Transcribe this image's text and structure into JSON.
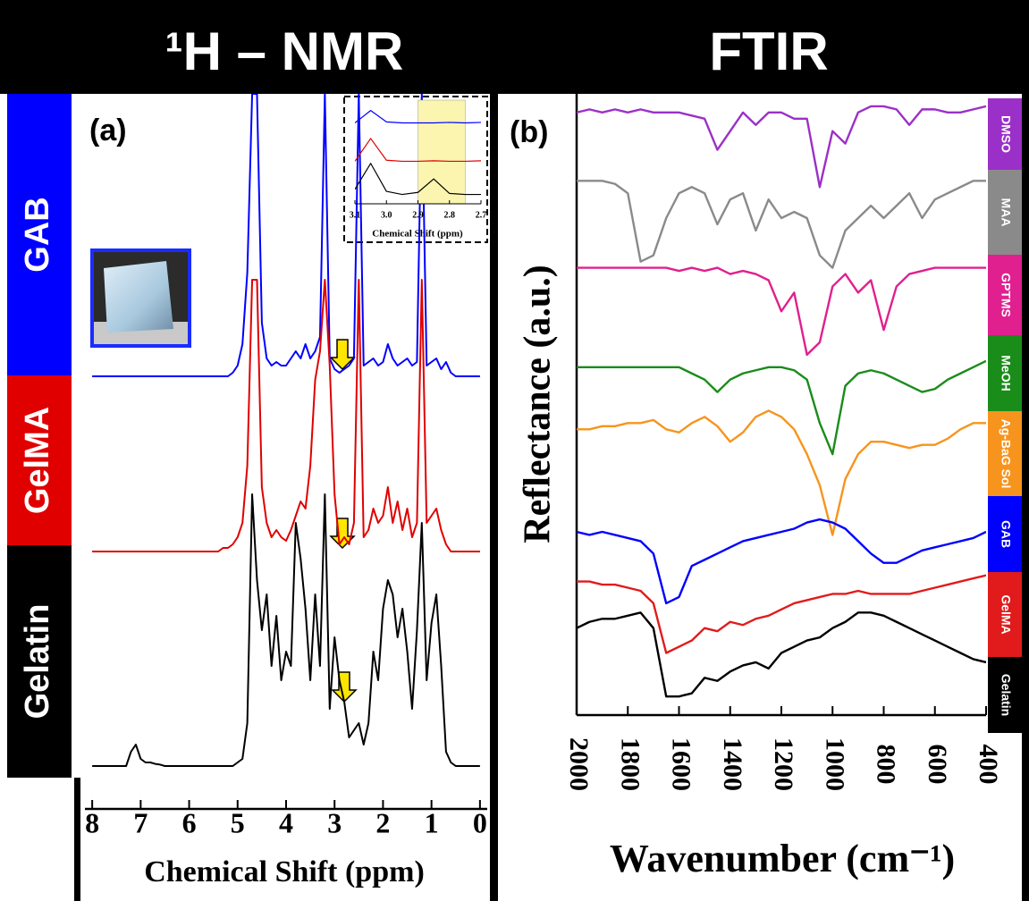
{
  "chart_data": [
    {
      "type": "line",
      "title": "¹H – NMR",
      "panel_label": "(a)",
      "x_label": "Chemical Shift (ppm)",
      "x": [
        8.0,
        7.9,
        7.8,
        7.7,
        7.6,
        7.5,
        7.4,
        7.3,
        7.2,
        7.1,
        7.0,
        6.9,
        6.8,
        6.7,
        6.6,
        6.5,
        6.4,
        6.3,
        6.2,
        6.1,
        6.0,
        5.9,
        5.8,
        5.7,
        5.6,
        5.5,
        5.4,
        5.3,
        5.2,
        5.1,
        5.0,
        4.9,
        4.8,
        4.7,
        4.6,
        4.5,
        4.4,
        4.3,
        4.2,
        4.1,
        4.0,
        3.9,
        3.8,
        3.7,
        3.6,
        3.5,
        3.4,
        3.3,
        3.2,
        3.1,
        3.0,
        2.9,
        2.8,
        2.7,
        2.6,
        2.5,
        2.4,
        2.3,
        2.2,
        2.1,
        2.0,
        1.9,
        1.8,
        1.7,
        1.6,
        1.5,
        1.4,
        1.3,
        1.2,
        1.1,
        1.0,
        0.9,
        0.8,
        0.7,
        0.6,
        0.5,
        0.4,
        0.3,
        0.2,
        0.1,
        0.0
      ],
      "xlim": [
        8.15,
        -0.15
      ],
      "xticks": [
        8,
        7,
        6,
        5,
        4,
        3,
        2,
        1,
        0
      ],
      "ylim": [
        0,
        100
      ],
      "series": [
        {
          "name": "GAB",
          "color": "#0000ff",
          "values": [
            60.5,
            60.5,
            60.5,
            60.5,
            60.5,
            60.5,
            60.5,
            60.5,
            60.5,
            60.5,
            60.5,
            60.5,
            60.5,
            60.5,
            60.5,
            60.5,
            60.5,
            60.5,
            60.5,
            60.5,
            60.5,
            60.5,
            60.5,
            60.5,
            60.5,
            60.5,
            60.5,
            60.5,
            60.5,
            61,
            62,
            65,
            75,
            100,
            100,
            68,
            63,
            62,
            62.5,
            62,
            62,
            63,
            64,
            63,
            65,
            63,
            64,
            66,
            100,
            63,
            61.5,
            61,
            61.5,
            62,
            63,
            100,
            62,
            62.5,
            63,
            62,
            62.5,
            65,
            63,
            62,
            62.5,
            63,
            62,
            62.5,
            100,
            62,
            62.5,
            63,
            61.5,
            62.5,
            61,
            60.5,
            60.5,
            60.5,
            60.5,
            60.5,
            60.5
          ]
        },
        {
          "name": "GelMA",
          "color": "#e00000",
          "values": [
            36,
            36,
            36,
            36,
            36,
            36,
            36,
            36,
            36,
            36,
            36,
            36,
            36,
            36,
            36,
            36,
            36,
            36,
            36,
            36,
            36,
            36,
            36,
            36,
            36,
            36,
            36,
            36.5,
            36.5,
            37,
            38,
            40,
            48,
            74,
            74,
            45,
            40,
            38,
            39,
            38,
            37.5,
            39,
            41,
            43,
            42,
            48,
            60,
            64,
            74,
            62,
            44,
            37,
            38,
            37,
            40,
            74,
            38,
            39,
            42,
            40,
            41,
            45,
            40,
            43,
            39,
            42,
            38,
            40,
            74,
            40,
            41,
            42,
            39,
            37,
            36,
            36,
            36,
            36,
            36,
            36,
            36
          ]
        },
        {
          "name": "Gelatin",
          "color": "#000000",
          "values": [
            6,
            6,
            6,
            6,
            6,
            6,
            6,
            6,
            8,
            9,
            7,
            6.5,
            6.5,
            6.3,
            6.2,
            6,
            6,
            6,
            6,
            6,
            6,
            6,
            6,
            6,
            6,
            6,
            6,
            6,
            6,
            6,
            6.5,
            7,
            12,
            44,
            32,
            25,
            30,
            20,
            27,
            18,
            22,
            20,
            40,
            35,
            28,
            18,
            30,
            20,
            44,
            14,
            24,
            18,
            15,
            10,
            11,
            12,
            9,
            12,
            22,
            18,
            28,
            32,
            30,
            24,
            28,
            22,
            14,
            25,
            40,
            18,
            26,
            30,
            20,
            8,
            6.5,
            6,
            6,
            6,
            6,
            6,
            6
          ]
        }
      ]
    },
    {
      "type": "line",
      "title": "FTIR",
      "panel_label": "(b)",
      "x_label": "Wavenumber (cm⁻¹)",
      "y_label": "Reflectance (a.u.)",
      "x": [
        2000,
        1950,
        1900,
        1850,
        1800,
        1750,
        1700,
        1650,
        1600,
        1550,
        1500,
        1450,
        1400,
        1350,
        1300,
        1250,
        1200,
        1150,
        1100,
        1050,
        1000,
        950,
        900,
        850,
        800,
        750,
        700,
        650,
        600,
        550,
        500,
        450,
        400
      ],
      "xlim": [
        2000,
        400
      ],
      "xticks": [
        2000,
        1800,
        1600,
        1400,
        1200,
        1000,
        800,
        600,
        400
      ],
      "ylim": [
        0,
        100
      ],
      "series": [
        {
          "name": "DMSO",
          "color": "#9b30c8",
          "values": [
            97,
            97.5,
            97,
            97.5,
            97,
            97.5,
            97,
            97,
            97,
            96.5,
            96,
            91,
            94,
            97,
            95,
            97,
            97,
            96,
            96,
            85,
            94,
            92,
            97,
            98,
            98,
            97.5,
            95,
            97.5,
            97.5,
            97,
            97,
            97.5,
            98
          ]
        },
        {
          "name": "MAA",
          "color": "#8a8a8a",
          "values": [
            86,
            86,
            86,
            85.5,
            84,
            73,
            74,
            80,
            84,
            85,
            84,
            79,
            83,
            84,
            78,
            83,
            80,
            81,
            80,
            74,
            72,
            78,
            80,
            82,
            80,
            82,
            84,
            80,
            83,
            84,
            85,
            86,
            86
          ]
        },
        {
          "name": "GPTMS",
          "color": "#e0208f",
          "values": [
            72,
            72,
            72,
            72,
            72,
            72,
            72,
            72,
            71.5,
            72,
            71.5,
            72,
            71,
            71.5,
            71,
            70,
            65,
            68,
            58,
            60,
            69,
            71,
            68,
            70,
            62,
            69,
            71,
            71.5,
            72,
            72,
            72,
            72,
            72
          ]
        },
        {
          "name": "MeOH",
          "color": "#1a8c1a",
          "values": [
            56,
            56,
            56,
            56,
            56,
            56,
            56,
            56,
            56,
            55,
            54,
            52,
            54,
            55,
            55.5,
            56,
            56,
            55.5,
            54,
            47,
            42,
            53,
            55,
            55.5,
            55,
            54,
            53,
            52,
            52.5,
            54,
            55,
            56,
            57
          ]
        },
        {
          "name": "Ag-BaG Sol",
          "color": "#f7941d",
          "values": [
            46,
            46,
            46.5,
            46.5,
            47,
            47,
            47.5,
            46,
            45.5,
            47,
            48,
            46.5,
            44,
            45.5,
            48,
            49,
            48,
            46,
            42,
            37,
            29,
            38,
            42,
            44,
            44,
            43.5,
            43,
            43.5,
            43.5,
            44.5,
            46,
            47,
            47
          ]
        },
        {
          "name": "GAB",
          "color": "#0000ff",
          "values": [
            29.5,
            29,
            29.5,
            29,
            28.5,
            28,
            26,
            18,
            19,
            24,
            25,
            26,
            27,
            28,
            28.5,
            29,
            29.5,
            30,
            31,
            31.5,
            31,
            30,
            28,
            26,
            24.5,
            24.5,
            25.5,
            26.5,
            27,
            27.5,
            28,
            28.5,
            29.5
          ]
        },
        {
          "name": "GelMA",
          "color": "#e11b1b",
          "values": [
            21.5,
            21.5,
            21,
            21,
            20.5,
            20,
            18,
            10,
            11,
            12,
            14,
            13.5,
            15,
            14.5,
            15.5,
            16,
            17,
            18,
            18.5,
            19,
            19.5,
            19.5,
            20,
            19.5,
            19.5,
            19.5,
            19.5,
            20,
            20.5,
            21,
            21.5,
            22,
            22.5
          ]
        },
        {
          "name": "Gelatin",
          "color": "#000000",
          "values": [
            14,
            15,
            15.5,
            15.5,
            16,
            16.5,
            14,
            3,
            3,
            3.5,
            6,
            5.5,
            7,
            8,
            8.5,
            7.5,
            10,
            11,
            12,
            12.5,
            14,
            15,
            16.5,
            16.5,
            16,
            15,
            14,
            13,
            12,
            11,
            10,
            9,
            8.5
          ]
        }
      ]
    },
    {
      "type": "line",
      "x_label": "Chemical Shift (ppm)",
      "x": [
        3.1,
        3.05,
        3.0,
        2.95,
        2.9,
        2.85,
        2.8,
        2.75,
        2.7
      ],
      "xlim": [
        3.1,
        2.7
      ],
      "xticks": [
        3.1,
        {
          "value": 3,
          "label": "3.0"
        },
        2.9,
        2.8,
        2.7
      ],
      "ylim": [
        0,
        100
      ],
      "highlight": [
        2.9,
        2.75
      ],
      "highlight_color": "#fbf5b0",
      "series": [
        {
          "color": "#0000ff",
          "values": [
            78,
            90,
            79,
            78,
            78,
            78,
            78.5,
            78,
            78.5
          ]
        },
        {
          "color": "#e00000",
          "values": [
            41,
            63,
            42,
            41,
            41,
            41.5,
            41,
            41,
            41.5
          ]
        },
        {
          "color": "#000000",
          "values": [
            14,
            39,
            12,
            9,
            11,
            24,
            10,
            9,
            9
          ]
        }
      ]
    }
  ]
}
